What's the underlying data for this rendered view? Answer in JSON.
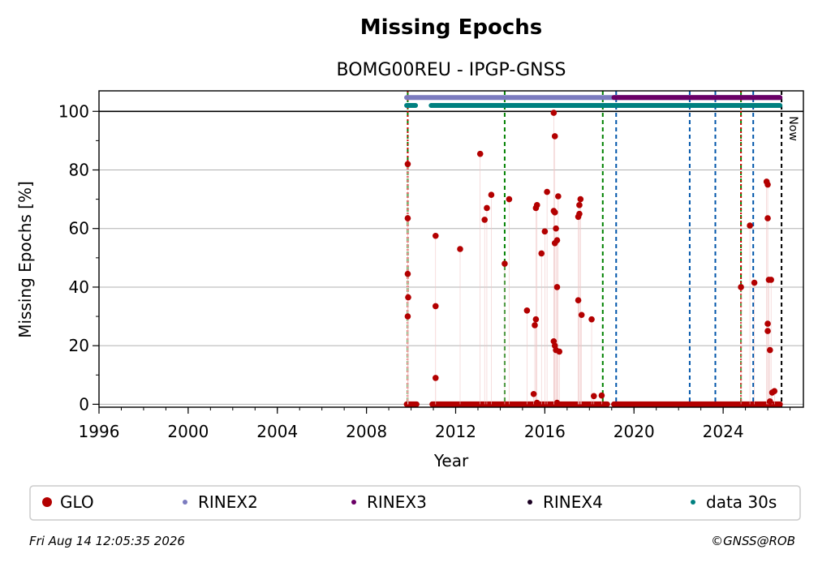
{
  "chart_data": {
    "type": "scatter",
    "title": "Missing Epochs",
    "subtitle": "BOMG00REU - IPGP-GNSS",
    "xlabel": "Year",
    "ylabel": "Missing Epochs [%]",
    "xlim": [
      1996,
      2027.6
    ],
    "ylim": [
      -1,
      107
    ],
    "x_ticks": [
      1996,
      2000,
      2004,
      2008,
      2012,
      2016,
      2020,
      2024
    ],
    "y_ticks": [
      0,
      20,
      40,
      60,
      80,
      100
    ],
    "grid": "horizontal",
    "now_label": "Now",
    "now_year": 2026.62,
    "legend": {
      "placement": "bottom",
      "entries": [
        {
          "name": "GLO",
          "color": "#b30000"
        },
        {
          "name": "RINEX2",
          "color": "#7b7bbf"
        },
        {
          "name": "RINEX3",
          "color": "#6a0066"
        },
        {
          "name": "RINEX4",
          "color": "#1a0022"
        },
        {
          "name": "data 30s",
          "color": "#008080"
        }
      ]
    },
    "vertical_lines": [
      {
        "x": 2009.85,
        "color": "#008000",
        "style": "dashed"
      },
      {
        "x": 2009.85,
        "color": "#d40000",
        "style": "dotted"
      },
      {
        "x": 2014.2,
        "color": "#008000",
        "style": "dashed"
      },
      {
        "x": 2018.6,
        "color": "#008000",
        "style": "dashed"
      },
      {
        "x": 2019.2,
        "color": "#0055aa",
        "style": "dashed"
      },
      {
        "x": 2022.5,
        "color": "#0055aa",
        "style": "dashed"
      },
      {
        "x": 2023.65,
        "color": "#0055aa",
        "style": "dashed"
      },
      {
        "x": 2024.8,
        "color": "#008000",
        "style": "dashed"
      },
      {
        "x": 2024.8,
        "color": "#d40000",
        "style": "dotted"
      },
      {
        "x": 2025.35,
        "color": "#0055aa",
        "style": "dashed"
      }
    ],
    "availability": [
      {
        "name": "RINEX2",
        "y": 104.7,
        "color": "#7b7bbf",
        "ranges": [
          [
            2009.8,
            2026.55
          ]
        ]
      },
      {
        "name": "RINEX3",
        "y": 104.7,
        "color": "#6a0066",
        "ranges": [
          [
            2019.1,
            2026.55
          ]
        ]
      },
      {
        "name": "data 30s",
        "y": 102,
        "color": "#008080",
        "ranges": [
          [
            2009.8,
            2010.2
          ],
          [
            2010.9,
            2026.55
          ]
        ]
      }
    ],
    "zero_ranges": [
      [
        2009.8,
        2010.25
      ],
      [
        2010.95,
        2018.8
      ],
      [
        2019.1,
        2026.55
      ]
    ],
    "series": [
      {
        "name": "GLO",
        "color": "#b30000",
        "points": [
          [
            2009.85,
            82
          ],
          [
            2009.85,
            63.5
          ],
          [
            2009.85,
            44.5
          ],
          [
            2009.87,
            36.5
          ],
          [
            2009.85,
            30
          ],
          [
            2011.1,
            57.5
          ],
          [
            2011.1,
            33.5
          ],
          [
            2011.1,
            9
          ],
          [
            2012.2,
            53
          ],
          [
            2013.1,
            85.5
          ],
          [
            2013.3,
            63
          ],
          [
            2013.4,
            67
          ],
          [
            2013.6,
            71.5
          ],
          [
            2014.2,
            48
          ],
          [
            2014.4,
            70
          ],
          [
            2015.2,
            32
          ],
          [
            2015.5,
            3.5
          ],
          [
            2015.55,
            27
          ],
          [
            2015.6,
            29
          ],
          [
            2015.6,
            67
          ],
          [
            2015.65,
            68
          ],
          [
            2015.65,
            0.5
          ],
          [
            2015.85,
            51.5
          ],
          [
            2016.0,
            59
          ],
          [
            2016.1,
            72.5
          ],
          [
            2016.4,
            99.5
          ],
          [
            2016.4,
            66
          ],
          [
            2016.45,
            65.5
          ],
          [
            2016.45,
            55
          ],
          [
            2016.45,
            91.5
          ],
          [
            2016.4,
            21.5
          ],
          [
            2016.45,
            20
          ],
          [
            2016.5,
            18.5
          ],
          [
            2016.5,
            60
          ],
          [
            2016.55,
            56
          ],
          [
            2016.55,
            40
          ],
          [
            2016.6,
            71
          ],
          [
            2016.65,
            18
          ],
          [
            2016.55,
            0.5
          ],
          [
            2017.5,
            35.5
          ],
          [
            2017.5,
            64
          ],
          [
            2017.55,
            65
          ],
          [
            2017.55,
            68
          ],
          [
            2017.6,
            70
          ],
          [
            2017.65,
            30.5
          ],
          [
            2018.1,
            29
          ],
          [
            2018.2,
            2.8
          ],
          [
            2018.55,
            3
          ],
          [
            2024.8,
            40
          ],
          [
            2025.2,
            61
          ],
          [
            2025.4,
            41.5
          ],
          [
            2025.95,
            76
          ],
          [
            2026.0,
            75
          ],
          [
            2026.0,
            63.5
          ],
          [
            2026.05,
            42.5
          ],
          [
            2026.15,
            42.5
          ],
          [
            2026.0,
            27.5
          ],
          [
            2026.0,
            25
          ],
          [
            2026.1,
            18.5
          ],
          [
            2026.2,
            4
          ],
          [
            2026.3,
            4.5
          ],
          [
            2026.1,
            1
          ]
        ]
      }
    ]
  },
  "footer": {
    "timestamp": "Fri Aug 14 12:05:35 2026",
    "copyright": "©GNSS@ROB"
  }
}
